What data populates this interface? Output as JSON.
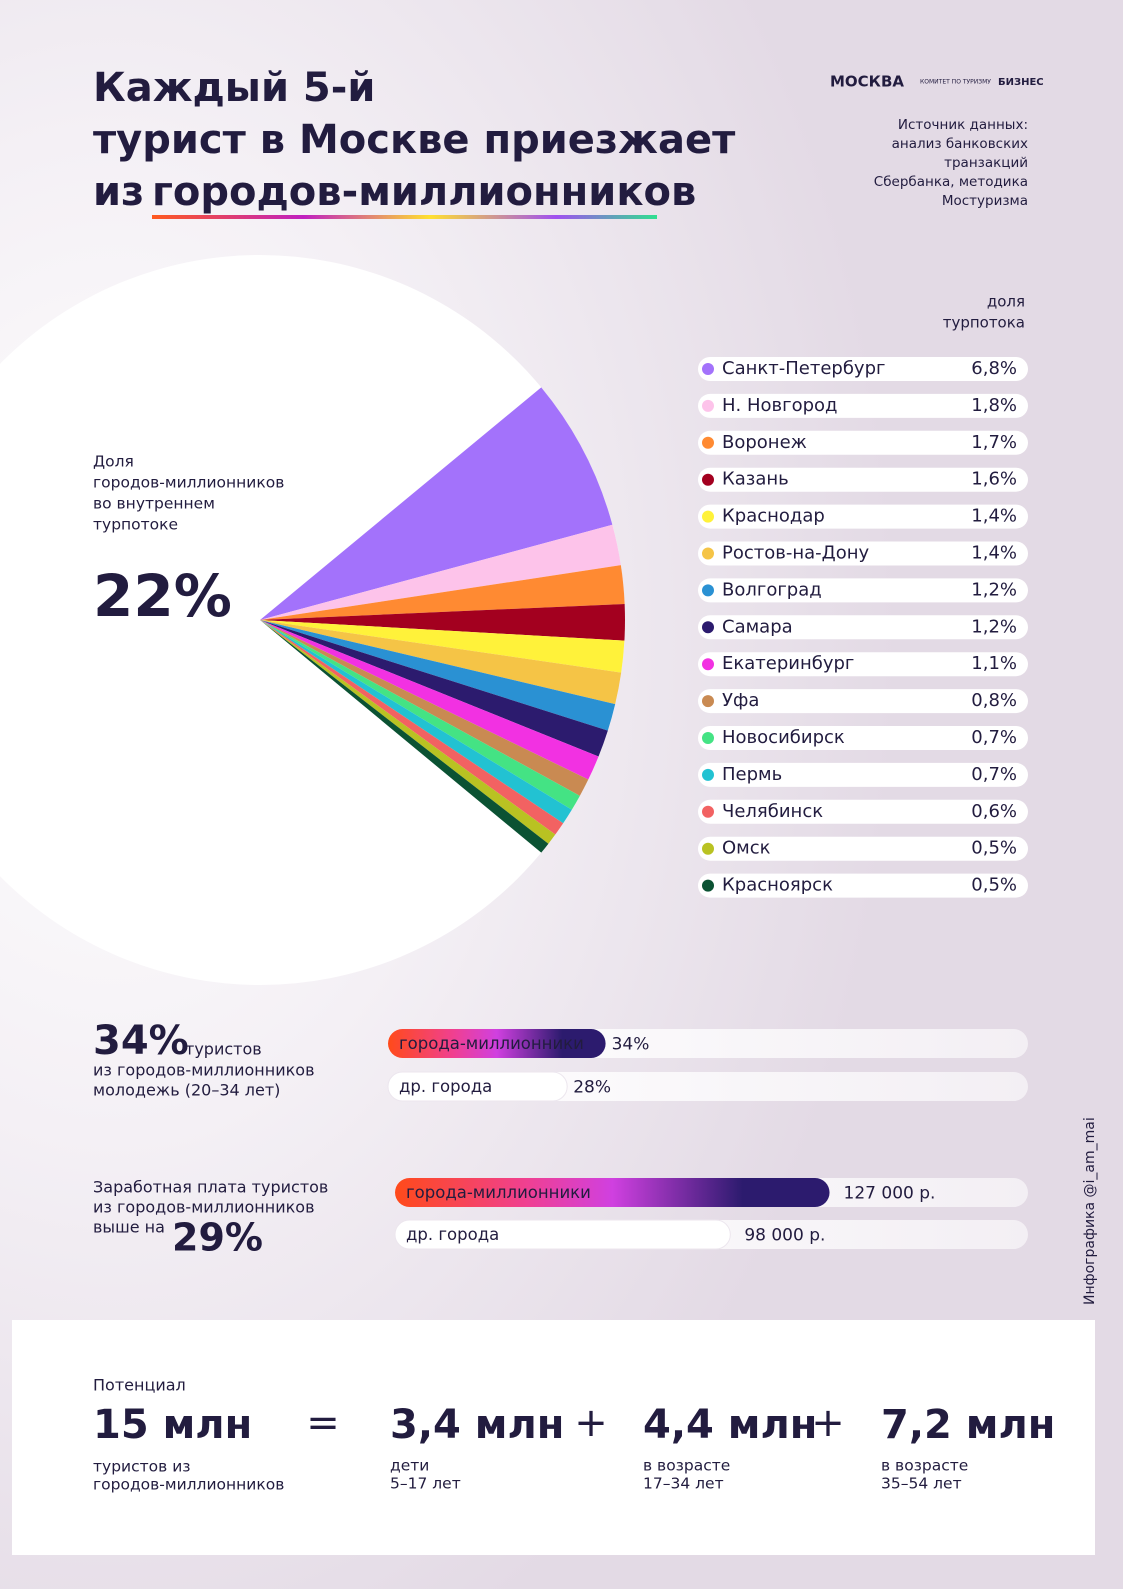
{
  "header": {
    "title_lines": [
      "Каждый 5-й",
      "турист в Москве приезжает"
    ],
    "title_prefix": "из",
    "title_highlight": "городов-миллионников",
    "logos": [
      "МОСКВА",
      "КОМИТЕТ ПО ТУРИЗМУ",
      "БИЗНЕС"
    ],
    "source": [
      "Источник данных:",
      "анализ банковских",
      "транзакций",
      "Сбербанка, методика",
      "Мостуризма"
    ]
  },
  "credit": "Инфографика @i_am_mai",
  "chart_data": [
    {
      "type": "pie",
      "caption": [
        "Доля",
        "городов-миллионников",
        "во внутреннем",
        "турпотоке"
      ],
      "total_label": "22%",
      "legend_header": [
        "доля",
        "турпотока"
      ],
      "categories": [
        "Санкт-Петербург",
        "Н. Новгород",
        "Воронеж",
        "Казань",
        "Краснодар",
        "Ростов-на-Дону",
        "Волгоград",
        "Самара",
        "Екатеринбург",
        "Уфа",
        "Новосибирск",
        "Пермь",
        "Челябинск",
        "Омск",
        "Красноярск"
      ],
      "values": [
        6.8,
        1.8,
        1.7,
        1.6,
        1.4,
        1.4,
        1.2,
        1.2,
        1.1,
        0.8,
        0.7,
        0.7,
        0.6,
        0.5,
        0.5
      ],
      "value_labels": [
        "6,8%",
        "1,8%",
        "1,7%",
        "1,6%",
        "1,4%",
        "1,4%",
        "1,2%",
        "1,2%",
        "1,1%",
        "0,8%",
        "0,7%",
        "0,7%",
        "0,6%",
        "0,5%",
        "0,5%"
      ],
      "colors": [
        "#a372fb",
        "#fdc3ea",
        "#ff8a32",
        "#a3001f",
        "#fff23a",
        "#f5c446",
        "#2a91d3",
        "#2c1b6e",
        "#f231e2",
        "#c98a52",
        "#44e384",
        "#22c2d2",
        "#f26262",
        "#b9c222",
        "#0b5233"
      ]
    },
    {
      "type": "bar",
      "orientation": "horizontal",
      "headline": "34%",
      "headline_suffix": "туристов",
      "caption": [
        "из городов-миллионников",
        "молодежь (20–34 лет)"
      ],
      "categories": [
        "города-миллионники",
        "др. города"
      ],
      "values": [
        34,
        28
      ],
      "value_labels": [
        "34%",
        "28%"
      ],
      "xlim": [
        0,
        100
      ]
    },
    {
      "type": "bar",
      "orientation": "horizontal",
      "caption": [
        "Заработная плата туристов",
        "из городов-миллионников",
        "выше на"
      ],
      "headline": "29%",
      "categories": [
        "города-миллионники",
        "др. города"
      ],
      "values": [
        127000,
        98000
      ],
      "value_labels": [
        "127 000 р.",
        "98 000 р."
      ],
      "xlim": [
        0,
        185000
      ]
    }
  ],
  "potential": {
    "title": "Потенциал",
    "total": "15 млн",
    "total_caption": [
      "туристов из",
      "городов-миллионников"
    ],
    "operators": [
      "=",
      "+",
      "+"
    ],
    "parts": [
      {
        "value": "3,4 млн",
        "caption": [
          "дети",
          "5–17 лет"
        ]
      },
      {
        "value": "4,4 млн",
        "caption": [
          "в возрасте",
          "17–34 лет"
        ]
      },
      {
        "value": "7,2 млн",
        "caption": [
          "в возрасте",
          "35–54 лет"
        ]
      }
    ]
  }
}
